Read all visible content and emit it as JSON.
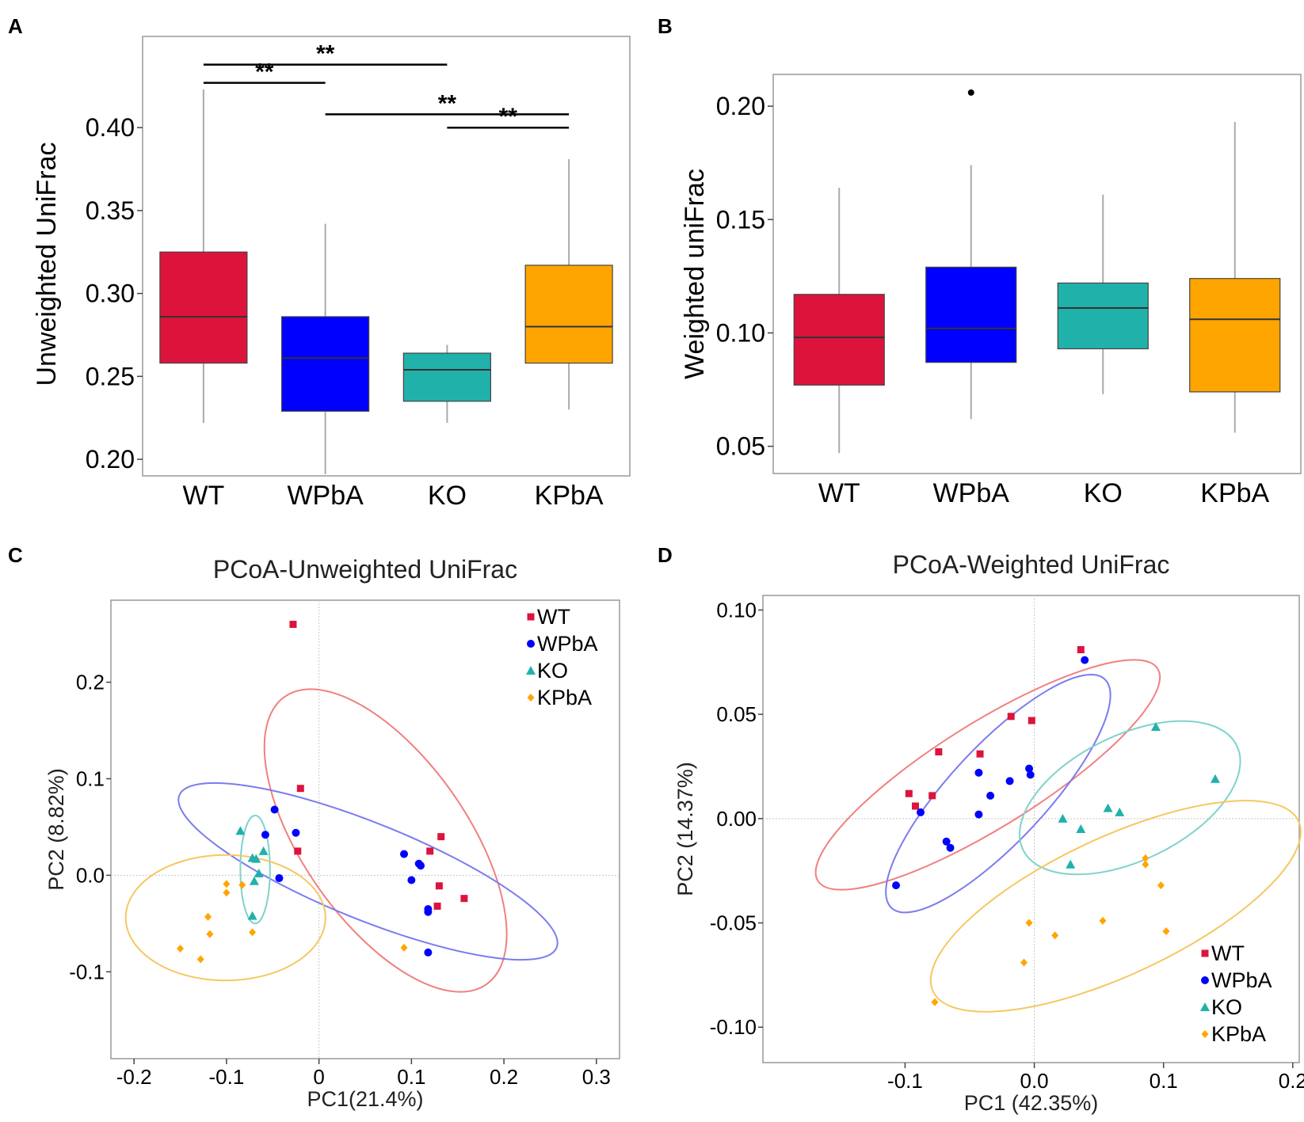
{
  "colors": {
    "WT": "#dc143c",
    "WPbA": "#0000ff",
    "KO": "#20b2aa",
    "KPbA": "#ffa500",
    "ellipse_WT": "#f08080",
    "ellipse_WPbA": "#7b7bf0",
    "ellipse_KO": "#7fd3cb",
    "ellipse_KPbA": "#f5c860"
  },
  "chart_data": [
    {
      "panel": "A",
      "type": "box",
      "title": "",
      "xlabel": "",
      "ylabel": "Unweighted UniFrac",
      "categories": [
        "WT",
        "WPbA",
        "KO",
        "KPbA"
      ],
      "yticks": [
        "0.20",
        "0.25",
        "0.30",
        "0.35",
        "0.40"
      ],
      "ylim": [
        0.19,
        0.455
      ],
      "boxes": [
        {
          "group": "WT",
          "min": 0.222,
          "q1": 0.258,
          "median": 0.286,
          "q3": 0.325,
          "max": 0.423
        },
        {
          "group": "WPbA",
          "min": 0.191,
          "q1": 0.229,
          "median": 0.261,
          "q3": 0.286,
          "max": 0.342
        },
        {
          "group": "KO",
          "min": 0.222,
          "q1": 0.235,
          "median": 0.254,
          "q3": 0.264,
          "max": 0.269
        },
        {
          "group": "KPbA",
          "min": 0.23,
          "q1": 0.258,
          "median": 0.28,
          "q3": 0.317,
          "max": 0.381
        }
      ],
      "outliers": [],
      "significance": [
        {
          "from": "WT",
          "to": "KO",
          "y": 0.438,
          "label": "**"
        },
        {
          "from": "WT",
          "to": "WPbA",
          "y": 0.427,
          "label": "**"
        },
        {
          "from": "WPbA",
          "to": "KPbA",
          "y": 0.408,
          "label": "**"
        },
        {
          "from": "KO",
          "to": "KPbA",
          "y": 0.4,
          "label": "**"
        }
      ]
    },
    {
      "panel": "B",
      "type": "box",
      "title": "",
      "xlabel": "",
      "ylabel": "Weighted  uniFrac",
      "categories": [
        "WT",
        "WPbA",
        "KO",
        "KPbA"
      ],
      "yticks": [
        "0.05",
        "0.10",
        "0.15",
        "0.20"
      ],
      "ylim": [
        0.038,
        0.214
      ],
      "boxes": [
        {
          "group": "WT",
          "min": 0.047,
          "q1": 0.077,
          "median": 0.098,
          "q3": 0.117,
          "max": 0.164
        },
        {
          "group": "WPbA",
          "min": 0.062,
          "q1": 0.087,
          "median": 0.102,
          "q3": 0.129,
          "max": 0.174
        },
        {
          "group": "KO",
          "min": 0.073,
          "q1": 0.093,
          "median": 0.111,
          "q3": 0.122,
          "max": 0.161
        },
        {
          "group": "KPbA",
          "min": 0.056,
          "q1": 0.074,
          "median": 0.106,
          "q3": 0.124,
          "max": 0.193
        }
      ],
      "outliers": [
        {
          "group": "WPbA",
          "value": 0.206
        }
      ]
    },
    {
      "panel": "C",
      "type": "scatter",
      "title": "PCoA-Unweighted UniFrac",
      "xlabel": "PC1(21.4%)",
      "ylabel": "PC2 (8.82%)",
      "xlim": [
        -0.225,
        0.325
      ],
      "ylim": [
        -0.19,
        0.285
      ],
      "xticks": [
        {
          "v": -0.2,
          "t": "-0.2"
        },
        {
          "v": -0.1,
          "t": "-0.1"
        },
        {
          "v": 0,
          "t": "0"
        },
        {
          "v": 0.1,
          "t": "0.1"
        },
        {
          "v": 0.2,
          "t": "0.2"
        },
        {
          "v": 0.3,
          "t": "0.3"
        }
      ],
      "yticks": [
        {
          "v": -0.1,
          "t": "-0.1"
        },
        {
          "v": 0,
          "t": "0.0"
        },
        {
          "v": 0.1,
          "t": "0.1"
        },
        {
          "v": 0.2,
          "t": "0.2"
        }
      ],
      "legend": [
        "WT",
        "WPbA",
        "KO",
        "KPbA"
      ],
      "legend_position": "top-right",
      "series": [
        {
          "name": "WT",
          "marker": "square",
          "points": [
            [
              -0.028,
              0.26
            ],
            [
              -0.02,
              0.09
            ],
            [
              -0.023,
              0.025
            ],
            [
              0.132,
              0.04
            ],
            [
              0.12,
              0.025
            ],
            [
              0.13,
              -0.011
            ],
            [
              0.128,
              -0.032
            ],
            [
              0.157,
              -0.024
            ]
          ]
        },
        {
          "name": "WPbA",
          "marker": "circle",
          "points": [
            [
              -0.048,
              0.068
            ],
            [
              -0.058,
              0.042
            ],
            [
              -0.025,
              0.044
            ],
            [
              -0.043,
              -0.003
            ],
            [
              0.092,
              0.022
            ],
            [
              0.108,
              0.012
            ],
            [
              0.11,
              0.01
            ],
            [
              0.1,
              -0.005
            ],
            [
              0.118,
              -0.035
            ],
            [
              0.118,
              -0.038
            ],
            [
              0.118,
              -0.08
            ]
          ]
        },
        {
          "name": "KO",
          "marker": "triangle",
          "points": [
            [
              -0.085,
              0.046
            ],
            [
              -0.06,
              0.025
            ],
            [
              -0.068,
              0.017
            ],
            [
              -0.072,
              0.018
            ],
            [
              -0.065,
              0.002
            ],
            [
              -0.07,
              -0.006
            ],
            [
              -0.072,
              -0.042
            ]
          ]
        },
        {
          "name": "KPbA",
          "marker": "diamond",
          "points": [
            [
              -0.1,
              -0.009
            ],
            [
              -0.1,
              -0.018
            ],
            [
              -0.083,
              -0.01
            ],
            [
              -0.12,
              -0.043
            ],
            [
              -0.118,
              -0.061
            ],
            [
              -0.15,
              -0.076
            ],
            [
              -0.128,
              -0.087
            ],
            [
              -0.072,
              -0.059
            ],
            [
              0.092,
              -0.075
            ]
          ]
        }
      ],
      "ellipses": [
        {
          "group": "WT",
          "cx": 0.072,
          "cy": 0.036,
          "rx": 0.19,
          "ry": 0.085,
          "angle": -55
        },
        {
          "group": "WPbA",
          "cx": 0.053,
          "cy": 0.004,
          "rx": 0.22,
          "ry": 0.05,
          "angle": -22
        },
        {
          "group": "KO",
          "cx": -0.069,
          "cy": 0.006,
          "rx": 0.016,
          "ry": 0.056,
          "angle": 0
        },
        {
          "group": "KPbA",
          "cx": -0.101,
          "cy": -0.044,
          "rx": 0.108,
          "ry": 0.065,
          "angle": 0
        }
      ]
    },
    {
      "panel": "D",
      "type": "scatter",
      "title": "PCoA-Weighted UniFrac",
      "xlabel": "PC1 (42.35%)",
      "ylabel": "PC2 (14.37%)",
      "xlim": [
        -0.21,
        0.205
      ],
      "ylim": [
        -0.117,
        0.107
      ],
      "xticks": [
        {
          "v": -0.1,
          "t": "-0.1"
        },
        {
          "v": 0,
          "t": "0.0"
        },
        {
          "v": 0.1,
          "t": "0.1"
        },
        {
          "v": 0.2,
          "t": "0.2"
        }
      ],
      "yticks": [
        {
          "v": -0.1,
          "t": "-0.10"
        },
        {
          "v": -0.05,
          "t": "-0.05"
        },
        {
          "v": 0,
          "t": "0.00"
        },
        {
          "v": 0.05,
          "t": "0.05"
        },
        {
          "v": 0.1,
          "t": "0.10"
        }
      ],
      "legend": [
        "WT",
        "WPbA",
        "KO",
        "KPbA"
      ],
      "legend_position": "bottom-right",
      "series": [
        {
          "name": "WT",
          "marker": "square",
          "points": [
            [
              -0.074,
              0.032
            ],
            [
              -0.097,
              0.012
            ],
            [
              -0.092,
              0.006
            ],
            [
              -0.079,
              0.011
            ],
            [
              -0.042,
              0.031
            ],
            [
              -0.018,
              0.049
            ],
            [
              -0.002,
              0.047
            ],
            [
              0.036,
              0.081
            ]
          ]
        },
        {
          "name": "WPbA",
          "marker": "circle",
          "points": [
            [
              -0.043,
              0.022
            ],
            [
              -0.019,
              0.018
            ],
            [
              -0.034,
              0.011
            ],
            [
              -0.003,
              0.021
            ],
            [
              -0.004,
              0.024
            ],
            [
              -0.043,
              0.002
            ],
            [
              -0.088,
              0.003
            ],
            [
              -0.068,
              -0.011
            ],
            [
              -0.065,
              -0.014
            ],
            [
              -0.107,
              -0.032
            ],
            [
              0.039,
              0.076
            ]
          ]
        },
        {
          "name": "KO",
          "marker": "triangle",
          "points": [
            [
              0.094,
              0.044
            ],
            [
              0.14,
              0.019
            ],
            [
              0.057,
              0.005
            ],
            [
              0.066,
              0.003
            ],
            [
              0.022,
              0.0
            ],
            [
              0.036,
              -0.005
            ],
            [
              0.028,
              -0.022
            ]
          ]
        },
        {
          "name": "KPbA",
          "marker": "diamond",
          "points": [
            [
              0.086,
              -0.019
            ],
            [
              0.086,
              -0.022
            ],
            [
              0.098,
              -0.032
            ],
            [
              0.102,
              -0.054
            ],
            [
              0.053,
              -0.049
            ],
            [
              -0.004,
              -0.05
            ],
            [
              0.016,
              -0.056
            ],
            [
              -0.008,
              -0.069
            ],
            [
              -0.077,
              -0.088
            ]
          ]
        }
      ],
      "ellipses": [
        {
          "group": "WT",
          "cx": -0.036,
          "cy": 0.021,
          "rx": 0.155,
          "ry": 0.025,
          "angle": 32
        },
        {
          "group": "WPbA",
          "cx": -0.028,
          "cy": 0.012,
          "rx": 0.121,
          "ry": 0.023,
          "angle": 47
        },
        {
          "group": "KO",
          "cx": 0.074,
          "cy": 0.01,
          "rx": 0.092,
          "ry": 0.03,
          "angle": 26
        },
        {
          "group": "KPbA",
          "cx": 0.063,
          "cy": -0.042,
          "rx": 0.156,
          "ry": 0.033,
          "angle": 25
        }
      ]
    }
  ]
}
